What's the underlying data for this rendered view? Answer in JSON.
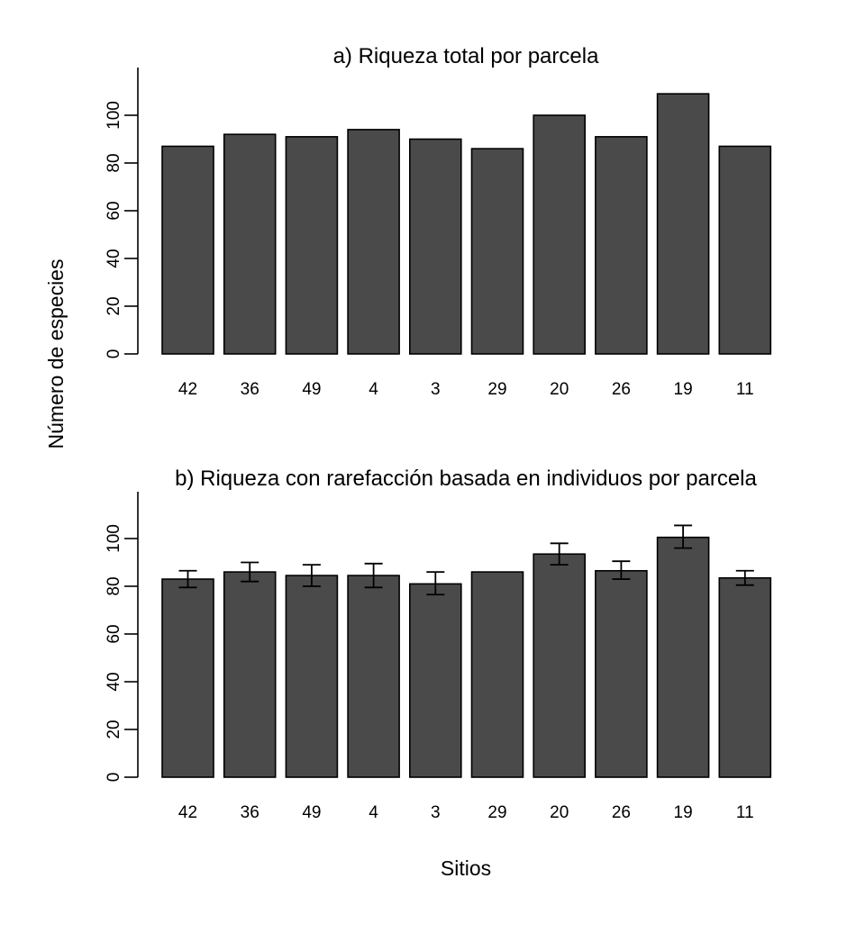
{
  "figure": {
    "ylabel": "Número de especies",
    "xlabel": "Sitios",
    "bar_color": "#4a4a4a",
    "edge_color": "#000000"
  },
  "chart_data": [
    {
      "type": "bar",
      "title": "a) Riqueza total por parcela",
      "categories": [
        "42",
        "36",
        "49",
        "4",
        "3",
        "29",
        "20",
        "26",
        "19",
        "11"
      ],
      "values": [
        87,
        92,
        91,
        94,
        90,
        86,
        100,
        91,
        109,
        87
      ],
      "ylim": [
        0,
        120
      ],
      "yticks": [
        0,
        20,
        40,
        60,
        80,
        100
      ],
      "grid": false
    },
    {
      "type": "bar",
      "title": "b) Riqueza con rarefacción basada en individuos por parcela",
      "categories": [
        "42",
        "36",
        "49",
        "4",
        "3",
        "29",
        "20",
        "26",
        "19",
        "11"
      ],
      "values": [
        83,
        86,
        84.5,
        84.5,
        81,
        86,
        93.5,
        86.5,
        100.5,
        83.5
      ],
      "error_low": [
        79.5,
        82,
        80,
        79.5,
        76.5,
        86,
        89,
        83,
        96,
        80.5
      ],
      "error_high": [
        86.5,
        90,
        89,
        89.5,
        86,
        86,
        98,
        90.5,
        105.5,
        86.5
      ],
      "ylim": [
        0,
        120
      ],
      "yticks": [
        0,
        20,
        40,
        60,
        80,
        100
      ],
      "grid": false
    }
  ]
}
